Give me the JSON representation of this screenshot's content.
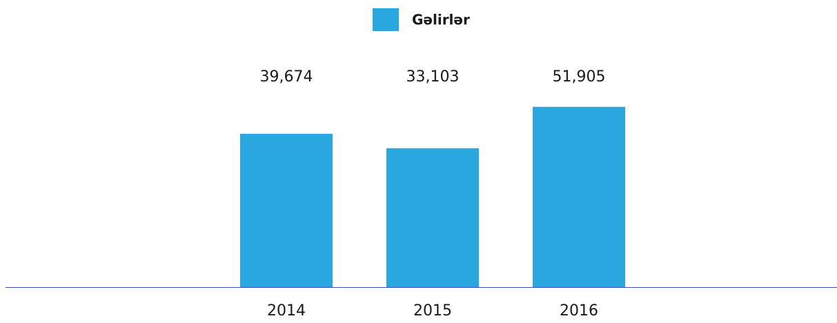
{
  "chart_data": {
    "type": "bar",
    "legend": "Gəlirlər",
    "categories": [
      "2014",
      "2015",
      "2016"
    ],
    "values": [
      39674,
      33103,
      51905
    ],
    "value_labels": [
      "39,674",
      "33,103",
      "51,905"
    ],
    "color": "#29a8e0",
    "axis_color": "#3a4fc0",
    "ylim": [
      -30000,
      60000
    ]
  }
}
